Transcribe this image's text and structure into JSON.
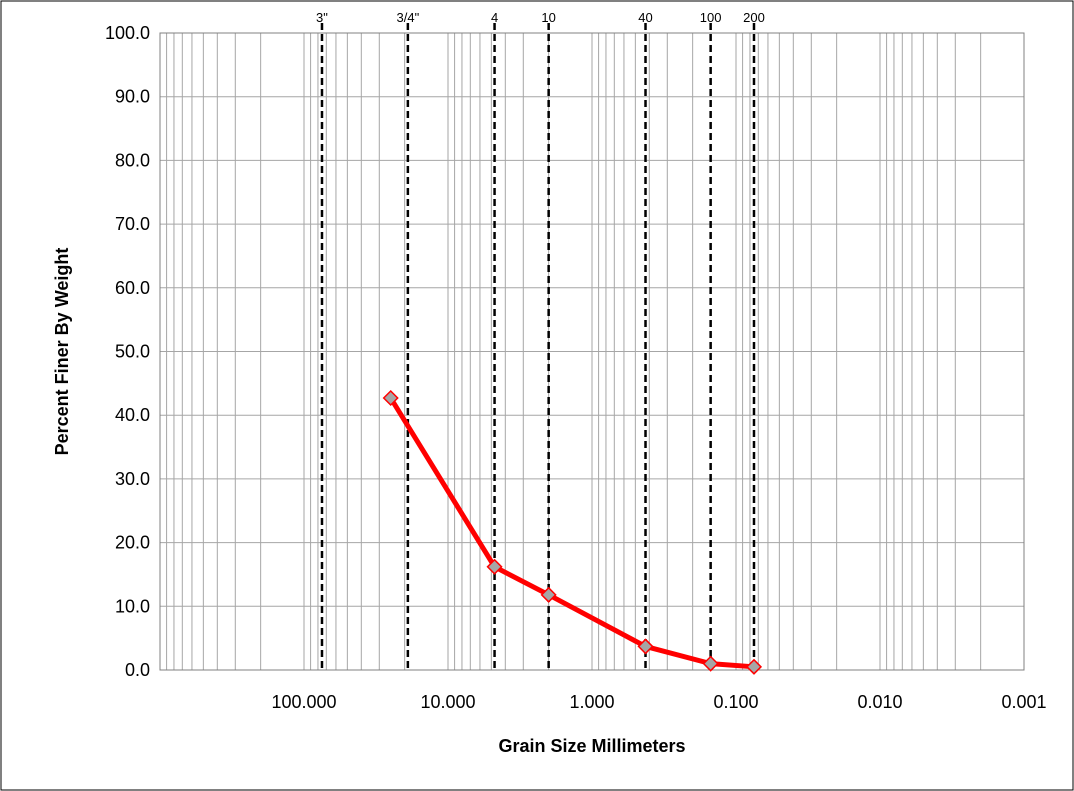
{
  "chart_data": {
    "type": "scatter",
    "title": "",
    "xlabel": "Grain Size Millimeters",
    "ylabel": "Percent Finer By Weight",
    "x_scale": "log",
    "x_reversed": true,
    "xlim": [
      1000,
      0.001
    ],
    "ylim": [
      0,
      100
    ],
    "grid": true,
    "legend": "none",
    "x_ticks": [
      {
        "value": 100,
        "label": "100.000"
      },
      {
        "value": 10,
        "label": "10.000"
      },
      {
        "value": 1,
        "label": "1.000"
      },
      {
        "value": 0.1,
        "label": "0.100"
      },
      {
        "value": 0.01,
        "label": "0.010"
      },
      {
        "value": 0.001,
        "label": "0.001"
      }
    ],
    "y_ticks": [
      {
        "value": 0,
        "label": "0.0"
      },
      {
        "value": 10,
        "label": "10.0"
      },
      {
        "value": 20,
        "label": "20.0"
      },
      {
        "value": 30,
        "label": "30.0"
      },
      {
        "value": 40,
        "label": "40.0"
      },
      {
        "value": 50,
        "label": "50.0"
      },
      {
        "value": 60,
        "label": "60.0"
      },
      {
        "value": 70,
        "label": "70.0"
      },
      {
        "value": 80,
        "label": "80.0"
      },
      {
        "value": 90,
        "label": "90.0"
      },
      {
        "value": 100,
        "label": "100.0"
      }
    ],
    "sieves": [
      {
        "label": "3\"",
        "size": 75
      },
      {
        "label": "3/4\"",
        "size": 19
      },
      {
        "label": "4",
        "size": 4.75
      },
      {
        "label": "10",
        "size": 2
      },
      {
        "label": "40",
        "size": 0.425
      },
      {
        "label": "100",
        "size": 0.15
      },
      {
        "label": "200",
        "size": 0.075
      }
    ],
    "series": [
      {
        "color": "#ff0000",
        "marker_fill": "#a6a6a6",
        "marker_stroke": "#ff0000",
        "marker": "diamond",
        "points": [
          {
            "x": 25,
            "y": 42.7
          },
          {
            "x": 4.75,
            "y": 16.2
          },
          {
            "x": 2,
            "y": 11.8
          },
          {
            "x": 0.425,
            "y": 3.7
          },
          {
            "x": 0.15,
            "y": 1.0
          },
          {
            "x": 0.075,
            "y": 0.5
          }
        ]
      }
    ],
    "colors": {
      "grid": "#a6a6a6",
      "sieve_line": "#000000",
      "frame": "#000000"
    }
  }
}
